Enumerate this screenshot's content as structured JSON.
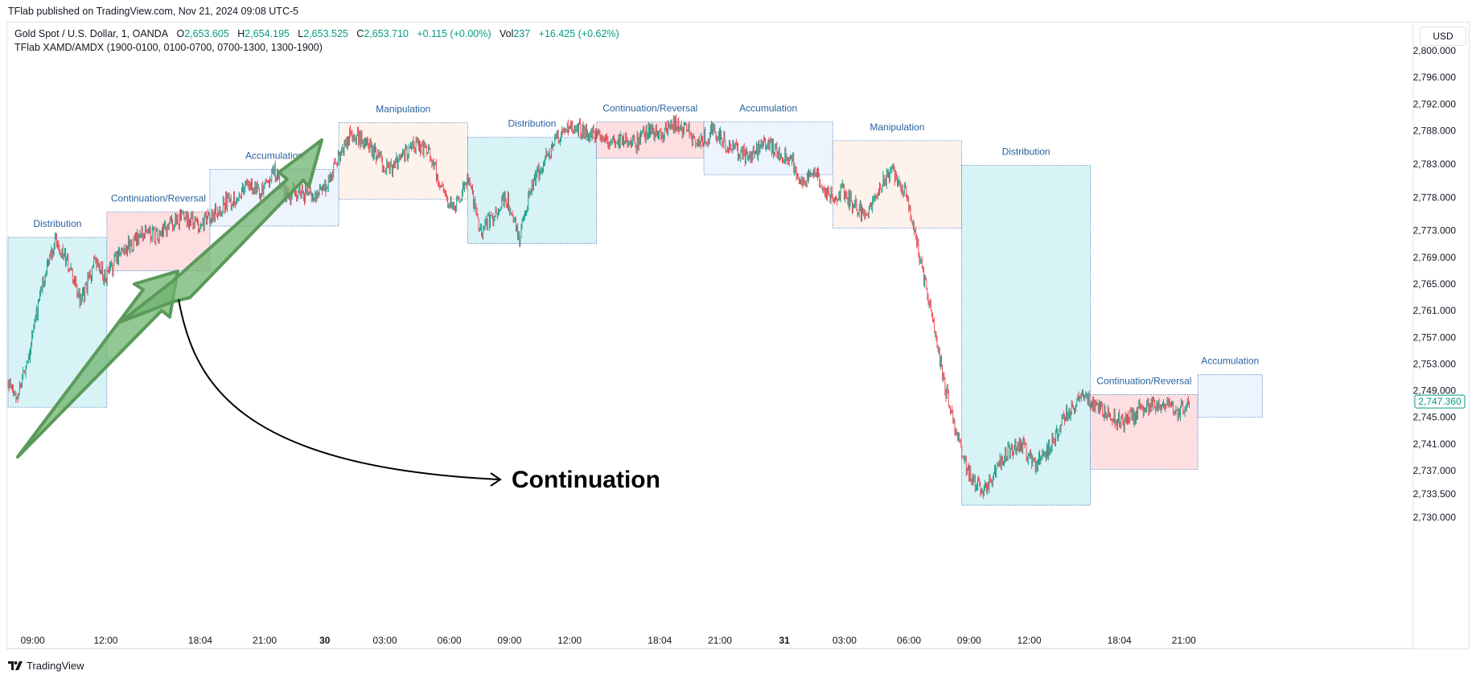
{
  "header": {
    "publisher": "TFlab published on TradingView.com, Nov 21, 2024 09:08 UTC-5",
    "currency": "USD",
    "footer_brand": "TradingView"
  },
  "legend": {
    "symbol": "Gold Spot / U.S. Dollar, 1, OANDA",
    "open_label": "O",
    "open": "2,653.605",
    "high_label": "H",
    "high": "2,654.195",
    "low_label": "L",
    "low": "2,653.525",
    "close_label": "C",
    "close": "2,653.710",
    "change": "+0.115 (+0.00%)",
    "vol_label": "Vol",
    "vol": "237",
    "vol_change": "+16.425 (+0.62%)",
    "indicator": "TFlab XAMD/AMDX (1900-0100, 0100-0700, 0700-1300, 1300-1900)"
  },
  "colors": {
    "up": "#089981",
    "down": "#f23645",
    "distribution": "#d7f3f5",
    "continuation": "#fddfe1",
    "accumulation": "#eef4fd",
    "manipulation": "#fdf3ec",
    "zone_border": "#4a7dbf",
    "zone_label": "#2962a0",
    "arrow_fill": "#6fb46f",
    "price_tag": "#089981"
  },
  "chart_data": {
    "type": "candlestick",
    "instrument": "Gold Spot / U.S. Dollar",
    "timeframe": "1",
    "ylim": [
      2728.5,
      2802.5
    ],
    "y_ticks": [
      "2,800.000",
      "2,796.000",
      "2,792.000",
      "2,788.000",
      "2,783.000",
      "2,778.000",
      "2,773.000",
      "2,769.000",
      "2,765.000",
      "2,761.000",
      "2,757.000",
      "2,753.000",
      "2,749.000",
      "2,745.000",
      "2,741.000",
      "2,737.000",
      "2,733.500",
      "2,730.000"
    ],
    "x_ticks": [
      "09:00",
      "12:00",
      "18:04",
      "21:00",
      "30",
      "03:00",
      "06:00",
      "09:00",
      "12:00",
      "18:04",
      "21:00",
      "31",
      "03:00",
      "06:00",
      "09:00",
      "12:00",
      "18:04",
      "21:00"
    ],
    "last_price": "2,747.360",
    "last_price_value": 2747.36,
    "price_path": [
      [
        0,
        2750
      ],
      [
        2,
        2748
      ],
      [
        5,
        2755
      ],
      [
        8,
        2765
      ],
      [
        11,
        2772
      ],
      [
        14,
        2768
      ],
      [
        17,
        2762
      ],
      [
        20,
        2768
      ],
      [
        23,
        2766
      ],
      [
        26,
        2770
      ],
      [
        29,
        2771
      ],
      [
        32,
        2773
      ],
      [
        35,
        2772
      ],
      [
        38,
        2774
      ],
      [
        41,
        2775
      ],
      [
        44,
        2774
      ],
      [
        47,
        2775
      ],
      [
        50,
        2777
      ],
      [
        53,
        2778
      ],
      [
        56,
        2780
      ],
      [
        59,
        2779
      ],
      [
        62,
        2782
      ],
      [
        65,
        2778
      ],
      [
        68,
        2779
      ],
      [
        71,
        2778
      ],
      [
        74,
        2780
      ],
      [
        77,
        2784
      ],
      [
        80,
        2788
      ],
      [
        83,
        2786
      ],
      [
        86,
        2784
      ],
      [
        89,
        2782
      ],
      [
        92,
        2784
      ],
      [
        95,
        2786
      ],
      [
        98,
        2785
      ],
      [
        101,
        2779
      ],
      [
        104,
        2776
      ],
      [
        107,
        2781
      ],
      [
        110,
        2773
      ],
      [
        113,
        2775
      ],
      [
        116,
        2778
      ],
      [
        119,
        2772
      ],
      [
        122,
        2780
      ],
      [
        125,
        2784
      ],
      [
        128,
        2787
      ],
      [
        131,
        2789
      ],
      [
        134,
        2788
      ],
      [
        137,
        2787
      ],
      [
        140,
        2786
      ],
      [
        143,
        2787
      ],
      [
        146,
        2786
      ],
      [
        149,
        2788
      ],
      [
        152,
        2787
      ],
      [
        155,
        2789
      ],
      [
        158,
        2788
      ],
      [
        161,
        2786
      ],
      [
        164,
        2788
      ],
      [
        167,
        2786
      ],
      [
        170,
        2785
      ],
      [
        173,
        2784
      ],
      [
        176,
        2786
      ],
      [
        179,
        2785
      ],
      [
        182,
        2784
      ],
      [
        185,
        2780
      ],
      [
        188,
        2782
      ],
      [
        191,
        2778
      ],
      [
        194,
        2779
      ],
      [
        197,
        2777
      ],
      [
        200,
        2775
      ],
      [
        203,
        2780
      ],
      [
        206,
        2782
      ],
      [
        209,
        2779
      ],
      [
        212,
        2770
      ],
      [
        215,
        2760
      ],
      [
        218,
        2750
      ],
      [
        221,
        2742
      ],
      [
        224,
        2736
      ],
      [
        227,
        2734
      ],
      [
        230,
        2737
      ],
      [
        233,
        2740
      ],
      [
        236,
        2741
      ],
      [
        239,
        2738
      ],
      [
        242,
        2740
      ],
      [
        245,
        2744
      ],
      [
        248,
        2747
      ],
      [
        251,
        2748
      ],
      [
        254,
        2746
      ],
      [
        257,
        2745
      ],
      [
        260,
        2744
      ],
      [
        263,
        2746
      ],
      [
        266,
        2747
      ],
      [
        269,
        2747
      ],
      [
        272,
        2746
      ],
      [
        275,
        2747
      ]
    ],
    "zones": [
      {
        "name": "Distribution",
        "type": "distribution",
        "start": 0,
        "end": 23,
        "top": 2772.0,
        "bottom": 2746.5
      },
      {
        "name": "Continuation/Reversal",
        "type": "continuation",
        "start": 23,
        "end": 47,
        "top": 2775.8,
        "bottom": 2767.0
      },
      {
        "name": "Accumulation",
        "type": "accumulation",
        "start": 47,
        "end": 77,
        "top": 2782.2,
        "bottom": 2773.7
      },
      {
        "name": "Manipulation",
        "type": "manipulation",
        "start": 77,
        "end": 107,
        "top": 2789.2,
        "bottom": 2777.7
      },
      {
        "name": "Distribution",
        "type": "distribution",
        "start": 107,
        "end": 137,
        "top": 2787.0,
        "bottom": 2771.1
      },
      {
        "name": "Continuation/Reversal",
        "type": "continuation",
        "start": 137,
        "end": 162,
        "top": 2789.3,
        "bottom": 2783.9
      },
      {
        "name": "Accumulation",
        "type": "accumulation",
        "start": 162,
        "end": 192,
        "top": 2789.3,
        "bottom": 2781.4
      },
      {
        "name": "Manipulation",
        "type": "manipulation",
        "start": 192,
        "end": 222,
        "top": 2786.5,
        "bottom": 2773.4
      },
      {
        "name": "Distribution",
        "type": "distribution",
        "start": 222,
        "end": 252,
        "top": 2782.8,
        "bottom": 2731.8
      },
      {
        "name": "Continuation/Reversal",
        "type": "continuation",
        "start": 252,
        "end": 277,
        "top": 2748.4,
        "bottom": 2737.2
      },
      {
        "name": "Accumulation",
        "type": "accumulation",
        "start": 277,
        "end": 292,
        "top": 2751.4,
        "bottom": 2745.0
      }
    ],
    "annotation": "Continuation"
  }
}
